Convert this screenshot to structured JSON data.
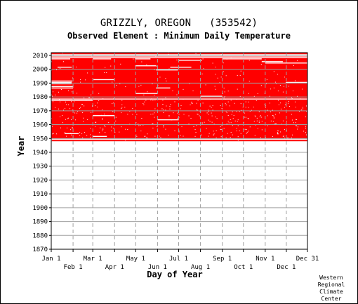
{
  "chart_data": {
    "type": "heatmap",
    "title": "GRIZZLY, OREGON   (353542)",
    "subtitle": "Observed Element : Minimum Daily Temperature",
    "xlabel": "Day of Year",
    "ylabel": "Year",
    "x_range_days": [
      1,
      365
    ],
    "ylim": [
      1870,
      2012
    ],
    "grid": true,
    "mark_color": "#ff0000",
    "x_ticks_upper": [
      {
        "label": "Jan 1",
        "day": 1
      },
      {
        "label": "Mar 1",
        "day": 60
      },
      {
        "label": "May 1",
        "day": 121
      },
      {
        "label": "Jul 1",
        "day": 182
      },
      {
        "label": "Sep 1",
        "day": 244
      },
      {
        "label": "Nov 1",
        "day": 305
      },
      {
        "label": "Dec 31",
        "day": 365
      }
    ],
    "x_ticks_lower": [
      {
        "label": "Feb 1",
        "day": 32
      },
      {
        "label": "Apr 1",
        "day": 91
      },
      {
        "label": "Jun 1",
        "day": 152
      },
      {
        "label": "Aug 1",
        "day": 213
      },
      {
        "label": "Oct 1",
        "day": 274
      },
      {
        "label": "Dec 1",
        "day": 335
      }
    ],
    "y_ticks": [
      1870,
      1880,
      1890,
      1900,
      1910,
      1920,
      1930,
      1940,
      1950,
      1960,
      1970,
      1980,
      1990,
      2000,
      2010
    ],
    "observed_period": {
      "start_year": 1948,
      "end_year": 2011
    },
    "missing_segments": [
      {
        "year": 2010,
        "start_day": 1,
        "end_day": 365
      },
      {
        "year": 2009,
        "start_day": 1,
        "end_day": 365
      },
      {
        "year": 2008,
        "start_day": 1,
        "end_day": 365
      },
      {
        "year": 2007,
        "start_day": 1,
        "end_day": 28
      },
      {
        "year": 2007,
        "start_day": 60,
        "end_day": 86
      },
      {
        "year": 2007,
        "start_day": 120,
        "end_day": 142
      },
      {
        "year": 2007,
        "start_day": 244,
        "end_day": 300
      },
      {
        "year": 2006,
        "start_day": 182,
        "end_day": 215
      },
      {
        "year": 2005,
        "start_day": 300,
        "end_day": 330
      },
      {
        "year": 2004,
        "start_day": 305,
        "end_day": 365
      },
      {
        "year": 2002,
        "start_day": 120,
        "end_day": 150
      },
      {
        "year": 2001,
        "start_day": 10,
        "end_day": 30
      },
      {
        "year": 2001,
        "start_day": 170,
        "end_day": 200
      },
      {
        "year": 1999,
        "start_day": 150,
        "end_day": 181
      },
      {
        "year": 1992,
        "start_day": 61,
        "end_day": 90
      },
      {
        "year": 1991,
        "start_day": 1,
        "end_day": 31
      },
      {
        "year": 1990,
        "start_day": 1,
        "end_day": 30
      },
      {
        "year": 1990,
        "start_day": 335,
        "end_day": 365
      },
      {
        "year": 1989,
        "start_day": 1,
        "end_day": 30
      },
      {
        "year": 1987,
        "start_day": 1,
        "end_day": 32
      },
      {
        "year": 1986,
        "start_day": 1,
        "end_day": 32
      },
      {
        "year": 1986,
        "start_day": 150,
        "end_day": 170
      },
      {
        "year": 1982,
        "start_day": 121,
        "end_day": 152
      },
      {
        "year": 1980,
        "start_day": 213,
        "end_day": 244
      },
      {
        "year": 1978,
        "start_day": 1,
        "end_day": 365
      },
      {
        "year": 1977,
        "start_day": 1,
        "end_day": 60
      },
      {
        "year": 1966,
        "start_day": 60,
        "end_day": 91
      },
      {
        "year": 1963,
        "start_day": 152,
        "end_day": 182
      },
      {
        "year": 1953,
        "start_day": 20,
        "end_day": 40
      },
      {
        "year": 1951,
        "start_day": 60,
        "end_day": 80
      },
      {
        "year": 1949,
        "start_day": 1,
        "end_day": 365
      }
    ]
  },
  "credit": {
    "line1": "Western",
    "line2": "Regional",
    "line3": "Climate",
    "line4": "Center"
  }
}
